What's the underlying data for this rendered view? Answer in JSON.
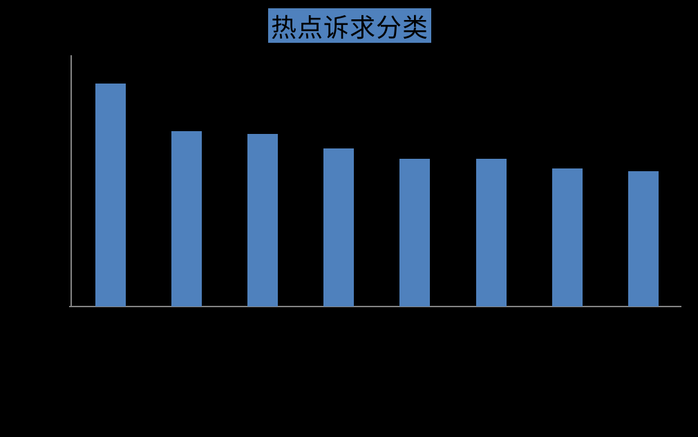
{
  "page": {
    "background_color": "#000000"
  },
  "title": {
    "text": "热点诉求分类",
    "text_color": "#000000",
    "highlight_color": "#4F81BD"
  },
  "axes": {
    "line_color": "#848484",
    "tick_labels_visible": false
  },
  "chart_data": {
    "type": "bar",
    "title": "热点诉求分类",
    "categories": [
      "",
      "",
      "",
      "",
      "",
      "",
      "",
      ""
    ],
    "values": [
      89,
      70,
      69,
      63,
      59,
      59,
      55,
      54
    ],
    "values_unit": "relative scale 0-100 (no axis labels visible, estimated from bar heights)",
    "xlabel": "",
    "ylabel": "",
    "ylim": [
      0,
      100
    ],
    "grid": false,
    "legend": false,
    "bar_color": "#4F81BD"
  }
}
